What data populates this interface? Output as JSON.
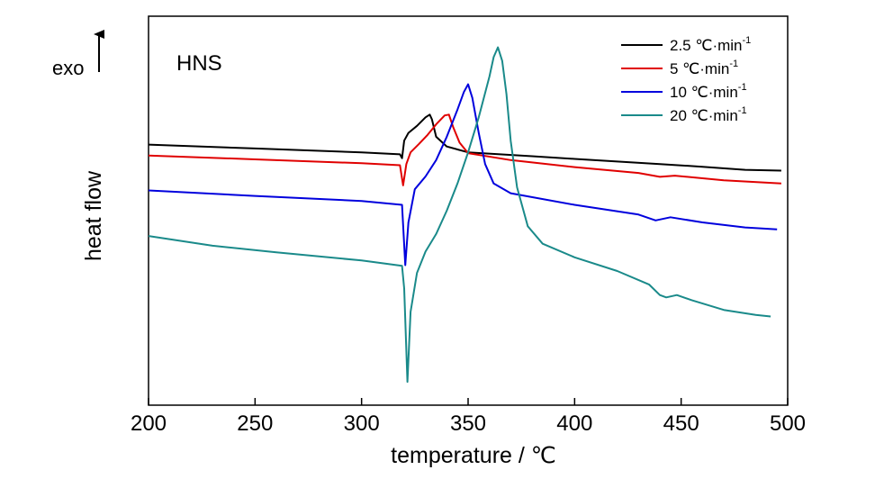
{
  "chart_data": {
    "type": "line",
    "title": "",
    "annotation": "HNS",
    "xlabel": "temperature / ℃",
    "ylabel": "heat flow",
    "exo_label": "exo",
    "xlim": [
      200,
      500
    ],
    "ylim": [
      0,
      1
    ],
    "x_ticks": [
      200,
      250,
      300,
      350,
      400,
      450,
      500
    ],
    "x_tick_labels": [
      "200",
      "250",
      "300",
      "350",
      "400",
      "450",
      "500"
    ],
    "y_ticks_shown": false,
    "grid": false,
    "legend_position": "top-right",
    "series": [
      {
        "name": "2.5 ℃·min",
        "name_sup": "-1",
        "color": "#000000",
        "points": [
          [
            200,
            0.67
          ],
          [
            250,
            0.66
          ],
          [
            300,
            0.65
          ],
          [
            318,
            0.645
          ],
          [
            319,
            0.635
          ],
          [
            320,
            0.68
          ],
          [
            322,
            0.7
          ],
          [
            326,
            0.718
          ],
          [
            330,
            0.74
          ],
          [
            332,
            0.747
          ],
          [
            333,
            0.735
          ],
          [
            335,
            0.69
          ],
          [
            340,
            0.665
          ],
          [
            350,
            0.65
          ],
          [
            380,
            0.64
          ],
          [
            400,
            0.633
          ],
          [
            440,
            0.62
          ],
          [
            460,
            0.613
          ],
          [
            480,
            0.605
          ],
          [
            497,
            0.603
          ]
        ]
      },
      {
        "name": "5 ℃·min",
        "name_sup": "-1",
        "color": "#e00000",
        "points": [
          [
            200,
            0.642
          ],
          [
            250,
            0.632
          ],
          [
            300,
            0.622
          ],
          [
            318,
            0.617
          ],
          [
            319.5,
            0.565
          ],
          [
            321,
            0.62
          ],
          [
            323,
            0.65
          ],
          [
            327,
            0.672
          ],
          [
            331,
            0.695
          ],
          [
            335,
            0.722
          ],
          [
            339,
            0.745
          ],
          [
            341,
            0.747
          ],
          [
            343,
            0.715
          ],
          [
            346,
            0.675
          ],
          [
            350,
            0.648
          ],
          [
            370,
            0.63
          ],
          [
            400,
            0.612
          ],
          [
            430,
            0.597
          ],
          [
            440,
            0.587
          ],
          [
            447,
            0.59
          ],
          [
            470,
            0.578
          ],
          [
            497,
            0.57
          ]
        ]
      },
      {
        "name": "10 ℃·min",
        "name_sup": "-1",
        "color": "#0000dd",
        "points": [
          [
            200,
            0.552
          ],
          [
            250,
            0.538
          ],
          [
            300,
            0.525
          ],
          [
            319,
            0.515
          ],
          [
            320.5,
            0.36
          ],
          [
            322,
            0.47
          ],
          [
            325,
            0.555
          ],
          [
            330,
            0.588
          ],
          [
            335,
            0.63
          ],
          [
            340,
            0.69
          ],
          [
            345,
            0.76
          ],
          [
            348,
            0.805
          ],
          [
            350,
            0.825
          ],
          [
            352,
            0.79
          ],
          [
            355,
            0.7
          ],
          [
            358,
            0.62
          ],
          [
            362,
            0.57
          ],
          [
            370,
            0.545
          ],
          [
            400,
            0.515
          ],
          [
            430,
            0.49
          ],
          [
            438,
            0.475
          ],
          [
            445,
            0.483
          ],
          [
            460,
            0.47
          ],
          [
            480,
            0.457
          ],
          [
            495,
            0.452
          ]
        ]
      },
      {
        "name": "20 ℃·min",
        "name_sup": "-1",
        "color": "#1a8a8a",
        "points": [
          [
            200,
            0.435
          ],
          [
            230,
            0.41
          ],
          [
            260,
            0.393
          ],
          [
            300,
            0.372
          ],
          [
            319,
            0.358
          ],
          [
            320,
            0.3
          ],
          [
            321.5,
            0.06
          ],
          [
            323,
            0.24
          ],
          [
            326,
            0.34
          ],
          [
            330,
            0.395
          ],
          [
            335,
            0.44
          ],
          [
            340,
            0.5
          ],
          [
            345,
            0.57
          ],
          [
            350,
            0.65
          ],
          [
            355,
            0.74
          ],
          [
            360,
            0.845
          ],
          [
            362,
            0.895
          ],
          [
            364,
            0.92
          ],
          [
            366,
            0.885
          ],
          [
            368,
            0.8
          ],
          [
            370,
            0.68
          ],
          [
            373,
            0.56
          ],
          [
            378,
            0.46
          ],
          [
            385,
            0.415
          ],
          [
            400,
            0.38
          ],
          [
            420,
            0.345
          ],
          [
            435,
            0.31
          ],
          [
            440,
            0.283
          ],
          [
            443,
            0.277
          ],
          [
            448,
            0.283
          ],
          [
            455,
            0.27
          ],
          [
            470,
            0.245
          ],
          [
            485,
            0.232
          ],
          [
            492,
            0.228
          ]
        ]
      }
    ]
  }
}
